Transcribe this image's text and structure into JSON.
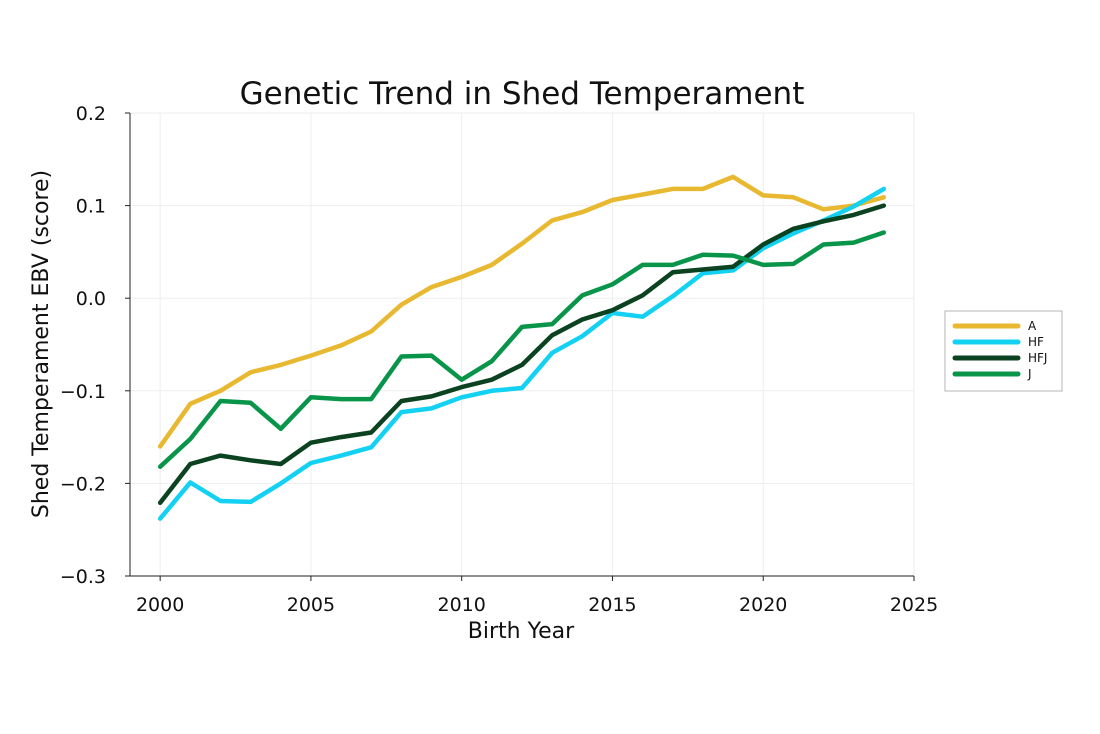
{
  "chart_data": {
    "type": "line",
    "title": "Genetic Trend in Shed Temperament",
    "xlabel": "Birth Year",
    "ylabel": "Shed Temperament EBV (score)",
    "xlim": [
      1999,
      2025
    ],
    "ylim": [
      -0.3,
      0.2
    ],
    "xticks": [
      2000,
      2005,
      2010,
      2015,
      2020,
      2025
    ],
    "xtick_labels": [
      "2000",
      "2005",
      "2010",
      "2015",
      "2020",
      "2025"
    ],
    "yticks": [
      -0.3,
      -0.2,
      -0.1,
      0.0,
      0.1,
      0.2
    ],
    "ytick_labels": [
      "−0.3",
      "−0.2",
      "−0.1",
      "0.0",
      "0.1",
      "0.2"
    ],
    "grid": true,
    "legend_position": "right",
    "x": [
      2000,
      2001,
      2002,
      2003,
      2004,
      2005,
      2006,
      2007,
      2008,
      2009,
      2010,
      2011,
      2012,
      2013,
      2014,
      2015,
      2016,
      2017,
      2018,
      2019,
      2020,
      2021,
      2022,
      2023,
      2024
    ],
    "series": [
      {
        "name": "A",
        "color": "#E8B830",
        "values": [
          -0.16,
          -0.114,
          -0.1,
          -0.08,
          -0.072,
          -0.062,
          -0.051,
          -0.036,
          -0.007,
          0.012,
          0.023,
          0.036,
          0.059,
          0.084,
          0.093,
          0.106,
          0.112,
          0.118,
          0.118,
          0.131,
          0.111,
          0.109,
          0.096,
          0.1,
          0.109
        ]
      },
      {
        "name": "HF",
        "color": "#13D1F2",
        "values": [
          -0.238,
          -0.199,
          -0.219,
          -0.22,
          -0.2,
          -0.178,
          -0.17,
          -0.161,
          -0.123,
          -0.119,
          -0.107,
          -0.1,
          -0.097,
          -0.059,
          -0.041,
          -0.016,
          -0.02,
          0.002,
          0.027,
          0.03,
          0.054,
          0.07,
          0.084,
          0.099,
          0.118
        ]
      },
      {
        "name": "HFJ",
        "color": "#0B4220",
        "values": [
          -0.221,
          -0.179,
          -0.17,
          -0.175,
          -0.179,
          -0.156,
          -0.15,
          -0.145,
          -0.111,
          -0.106,
          -0.096,
          -0.088,
          -0.072,
          -0.04,
          -0.023,
          -0.013,
          0.003,
          0.028,
          0.031,
          0.034,
          0.058,
          0.075,
          0.083,
          0.09,
          0.1
        ]
      },
      {
        "name": "J",
        "color": "#08954A",
        "values": [
          -0.182,
          -0.152,
          -0.111,
          -0.113,
          -0.141,
          -0.107,
          -0.109,
          -0.109,
          -0.063,
          -0.062,
          -0.088,
          -0.068,
          -0.031,
          -0.028,
          0.003,
          0.015,
          0.036,
          0.036,
          0.047,
          0.046,
          0.036,
          0.037,
          0.058,
          0.06,
          0.071
        ]
      }
    ]
  }
}
